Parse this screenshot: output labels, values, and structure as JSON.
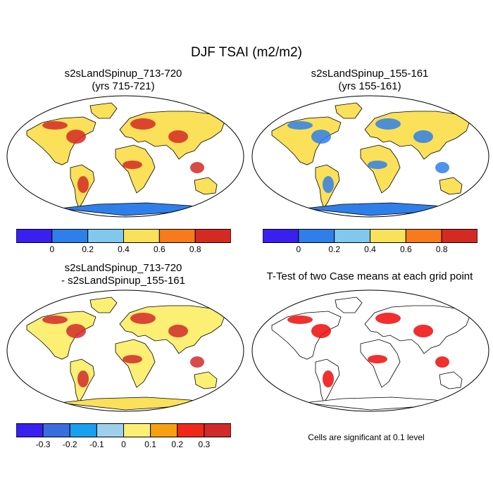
{
  "figure": {
    "title": "DJF TSAI (m2/m2)"
  },
  "panels": [
    {
      "line1": "s2sLandSpinup_713-720",
      "line2": "(yrs 715-721)"
    },
    {
      "line1": "s2sLandSpinup_155-161",
      "line2": "(yrs 155-161)"
    },
    {
      "line1": "s2sLandSpinup_713-720",
      "line2": "- s2sLandSpinup_155-161"
    },
    {
      "line1": "T-Test of two Case means at each grid point",
      "line2": ""
    }
  ],
  "colorbar_case": {
    "colors": [
      "#3a20f0",
      "#2f7fea",
      "#80c8ee",
      "#fbe05a",
      "#f77a1c",
      "#d42a24"
    ],
    "labels": [
      "0",
      "0.2",
      "0.4",
      "0.6",
      "0.8"
    ]
  },
  "colorbar_diff": {
    "colors": [
      "#3a20f0",
      "#3a6ee0",
      "#1aa0f0",
      "#9ed0ec",
      "#fbef74",
      "#f8a010",
      "#f0281c",
      "#d22a2a"
    ],
    "labels": [
      "-0.3",
      "-0.2",
      "-0.1",
      "0",
      "0.1",
      "0.2",
      "0.3"
    ]
  },
  "significance_note": "Cells are significant at 0.1 level",
  "map_colors": {
    "ocean": "#ffffff",
    "coast": "#000000",
    "antarctica_case": "#2f7fea",
    "antarctica_diff": "#fbe05a",
    "sig": "#f00a0a"
  }
}
